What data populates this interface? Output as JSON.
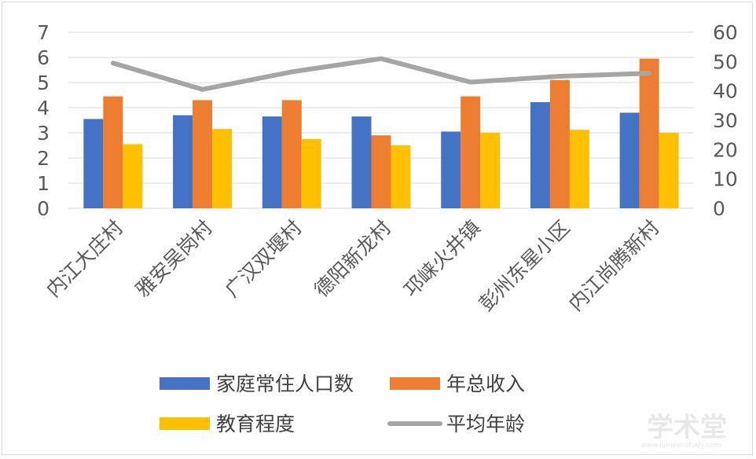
{
  "chart_data": {
    "type": "bar",
    "categories": [
      "内江大庄村",
      "雅安吴岗村",
      "广汉双堰村",
      "德阳新龙村",
      "邛崃火井镇",
      "彭州东星小区",
      "内江尚腾新村"
    ],
    "series": [
      {
        "name": "家庭常住人口数",
        "kind": "bar",
        "axis": "left",
        "color": "#4472c4",
        "values": [
          3.55,
          3.7,
          3.65,
          3.65,
          3.05,
          4.22,
          3.8
        ]
      },
      {
        "name": "年总收入",
        "kind": "bar",
        "axis": "left",
        "color": "#ed7d31",
        "values": [
          4.45,
          4.3,
          4.3,
          2.9,
          4.45,
          5.1,
          5.95
        ]
      },
      {
        "name": "教育程度",
        "kind": "bar",
        "axis": "left",
        "color": "#ffc000",
        "values": [
          2.55,
          3.15,
          2.75,
          2.5,
          3.0,
          3.12,
          3.0
        ]
      },
      {
        "name": "平均年龄",
        "kind": "line",
        "axis": "right",
        "color": "#a5a5a5",
        "values": [
          49.5,
          40.5,
          46.5,
          51,
          43,
          45,
          46
        ]
      }
    ],
    "y_left": {
      "min": 0,
      "max": 7,
      "ticks": [
        0,
        1,
        2,
        3,
        4,
        5,
        6,
        7
      ]
    },
    "y_right": {
      "min": 0,
      "max": 60,
      "ticks": [
        0,
        10,
        20,
        30,
        40,
        50,
        60
      ]
    },
    "grid": true,
    "legend_position": "bottom",
    "title": "",
    "xlabel": "",
    "ylabel": ""
  },
  "watermark": {
    "text": "学术堂",
    "url": "www.lunwenstudy.com"
  }
}
